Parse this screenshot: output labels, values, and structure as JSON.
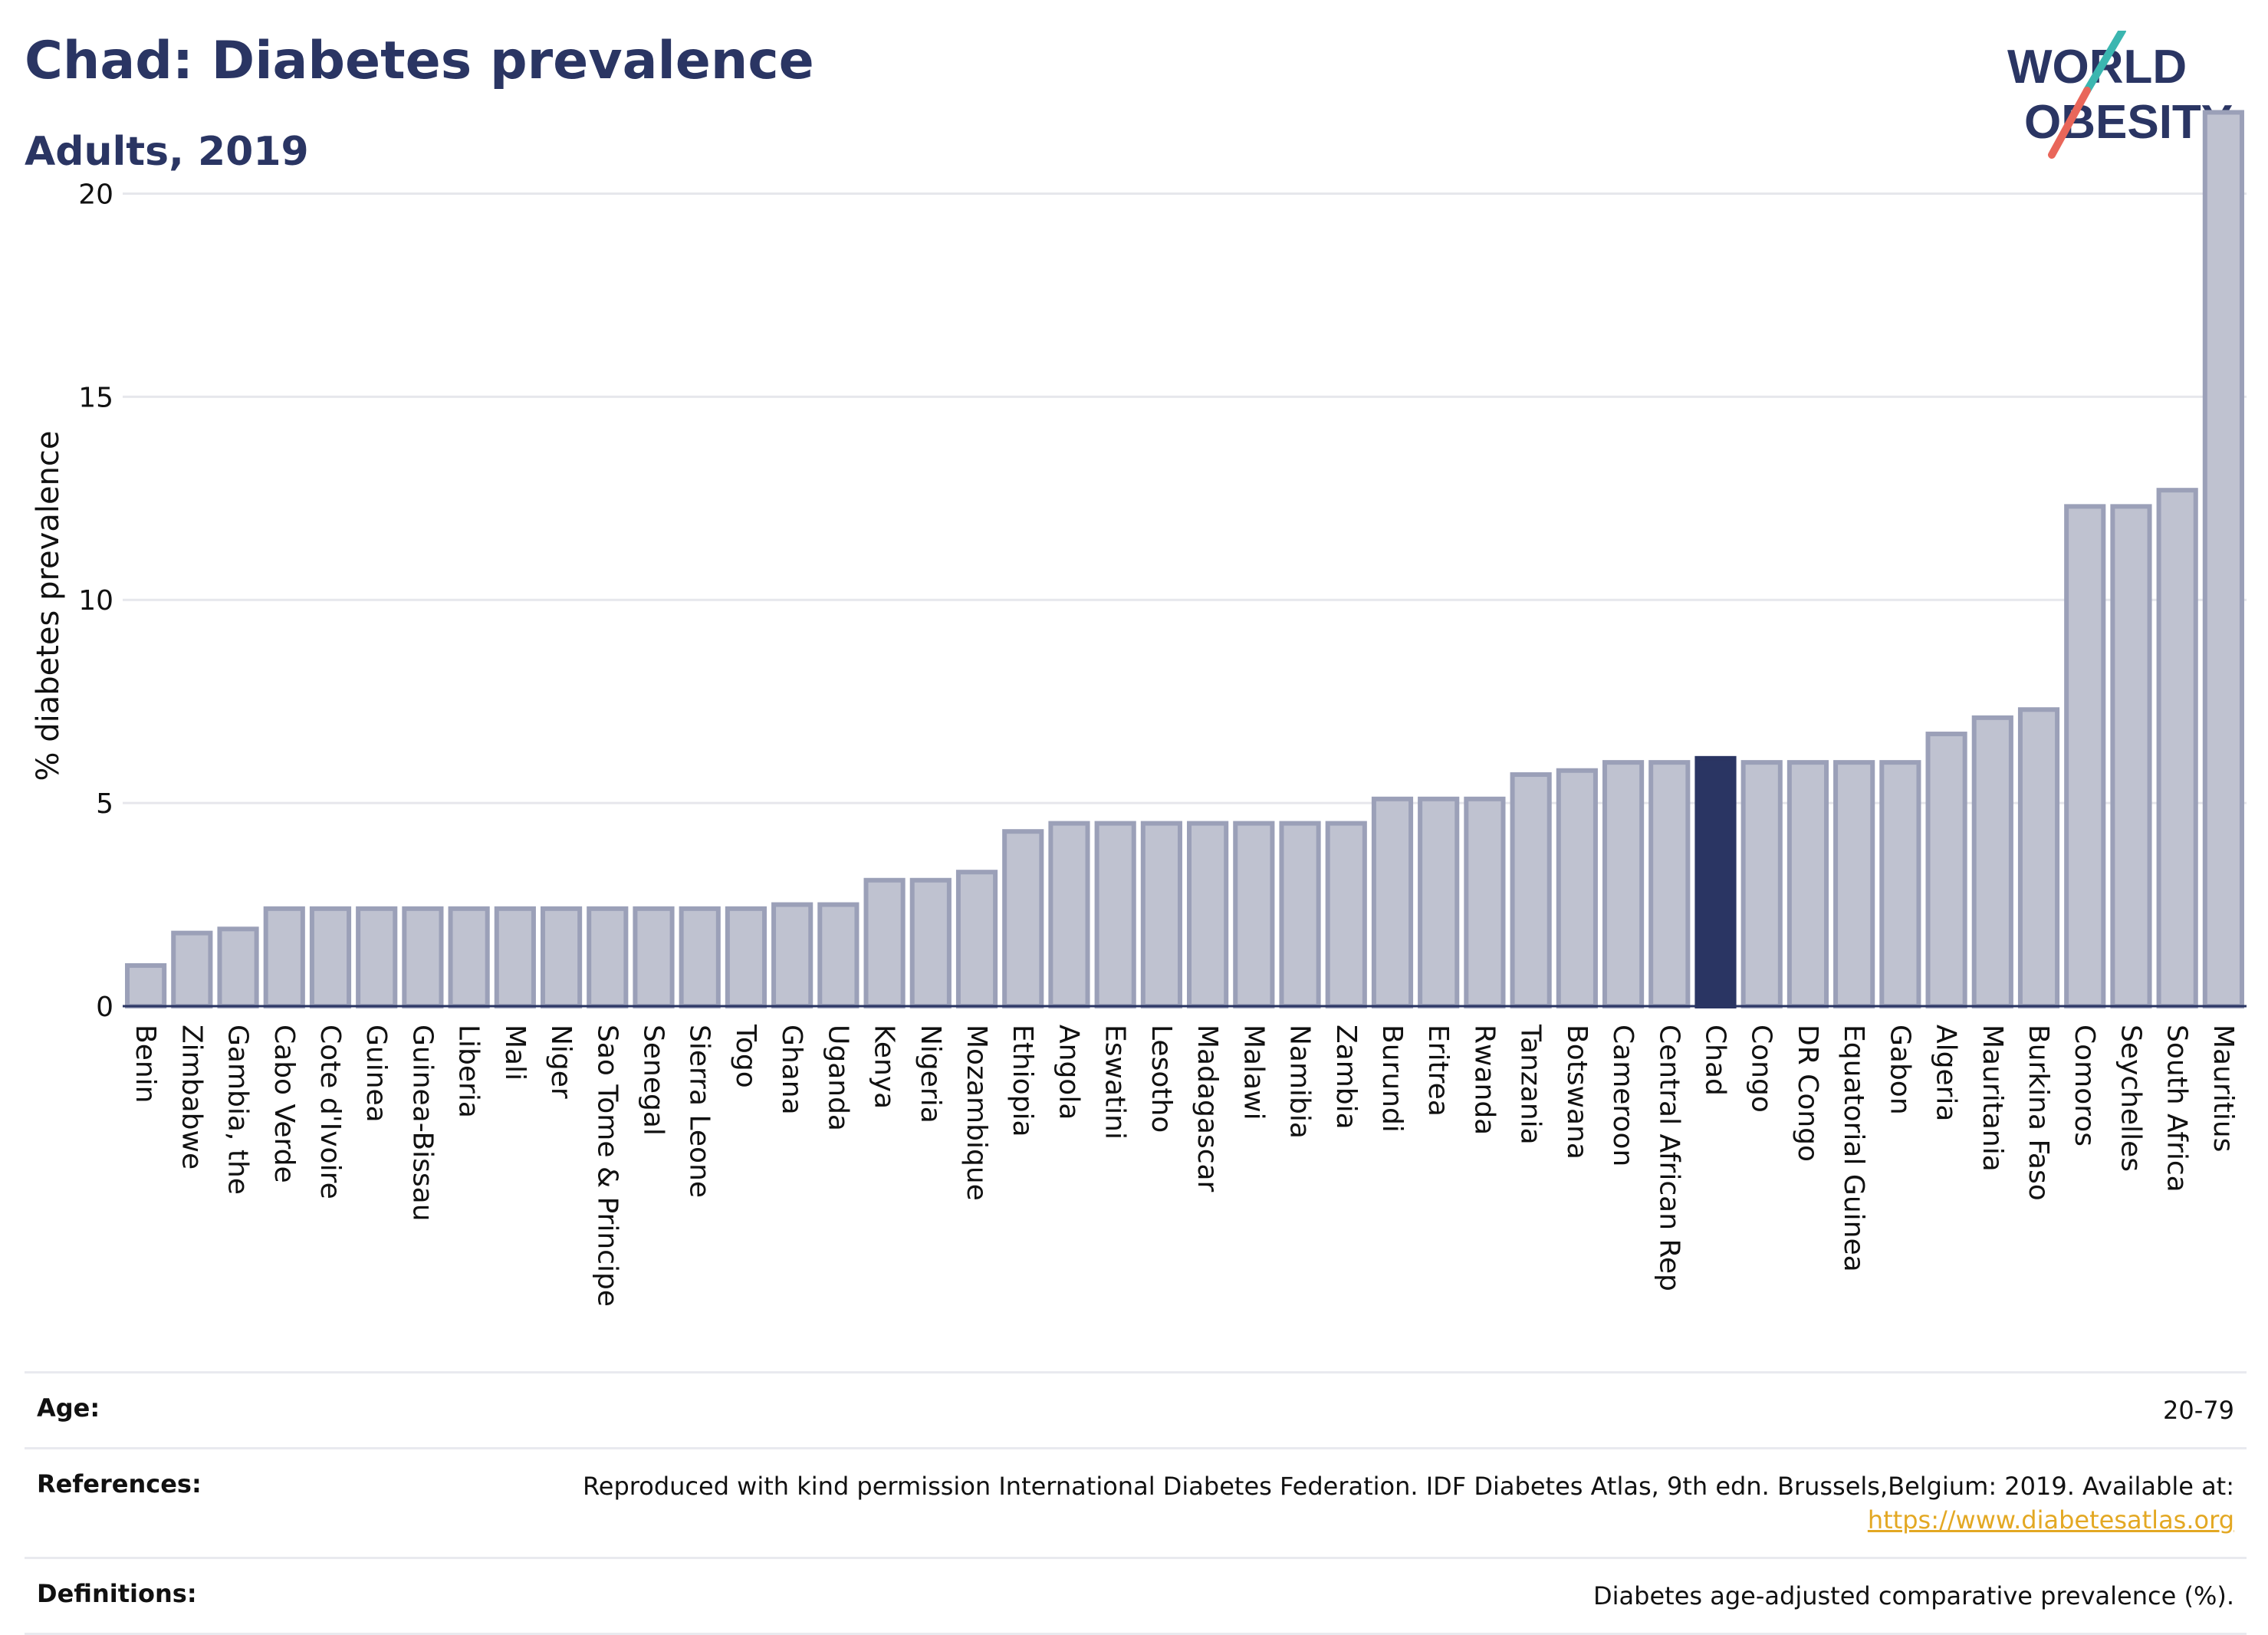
{
  "header": {
    "title": "Chad: Diabetes prevalence",
    "subtitle": "Adults, 2019"
  },
  "logo": {
    "line1": "WORLD",
    "line2": "OBESITY",
    "colors": {
      "text": "#2a3563",
      "slash_top": "#3bb6b0",
      "slash_bottom": "#e9665a"
    }
  },
  "chart_data": {
    "type": "bar",
    "ylabel": "% diabetes prevalence",
    "ylim": [
      0,
      22.5
    ],
    "yticks": [
      0,
      5,
      10,
      15,
      20
    ],
    "grid": true,
    "highlight": "Chad",
    "colors": {
      "bar": "#bfc2d0",
      "bar_border": "#9ba0b8",
      "highlight": "#2a3563",
      "grid": "#e6e7ec",
      "axis": "#2a3563"
    },
    "categories": [
      "Benin",
      "Zimbabwe",
      "Gambia, the",
      "Cabo Verde",
      "Cote d'Ivoire",
      "Guinea",
      "Guinea-Bissau",
      "Liberia",
      "Mali",
      "Niger",
      "Sao Tome & Principe",
      "Senegal",
      "Sierra Leone",
      "Togo",
      "Ghana",
      "Uganda",
      "Kenya",
      "Nigeria",
      "Mozambique",
      "Ethiopia",
      "Angola",
      "Eswatini",
      "Lesotho",
      "Madagascar",
      "Malawi",
      "Namibia",
      "Zambia",
      "Burundi",
      "Eritrea",
      "Rwanda",
      "Tanzania",
      "Botswana",
      "Cameroon",
      "Central African Rep",
      "Chad",
      "Congo",
      "DR Congo",
      "Equatorial Guinea",
      "Gabon",
      "Algeria",
      "Mauritania",
      "Burkina Faso",
      "Comoros",
      "Seychelles",
      "South Africa",
      "Mauritius"
    ],
    "values": [
      1.0,
      1.8,
      1.9,
      2.4,
      2.4,
      2.4,
      2.4,
      2.4,
      2.4,
      2.4,
      2.4,
      2.4,
      2.4,
      2.4,
      2.5,
      2.5,
      3.1,
      3.1,
      3.3,
      4.3,
      4.5,
      4.5,
      4.5,
      4.5,
      4.5,
      4.5,
      4.5,
      5.1,
      5.1,
      5.1,
      5.7,
      5.8,
      6.0,
      6.0,
      6.1,
      6.0,
      6.0,
      6.0,
      6.0,
      6.7,
      7.1,
      7.3,
      12.3,
      12.3,
      12.7,
      22.0
    ]
  },
  "info": {
    "age_label": "Age:",
    "age_value": "20-79",
    "references_label": "References:",
    "references_text": "Reproduced with kind permission International Diabetes Federation. IDF Diabetes Atlas, 9th edn. Brussels,Belgium: 2019. Available at:",
    "references_link": "https://www.diabetesatlas.org",
    "definitions_label": "Definitions:",
    "definitions_value": "Diabetes age-adjusted comparative prevalence (%)."
  }
}
